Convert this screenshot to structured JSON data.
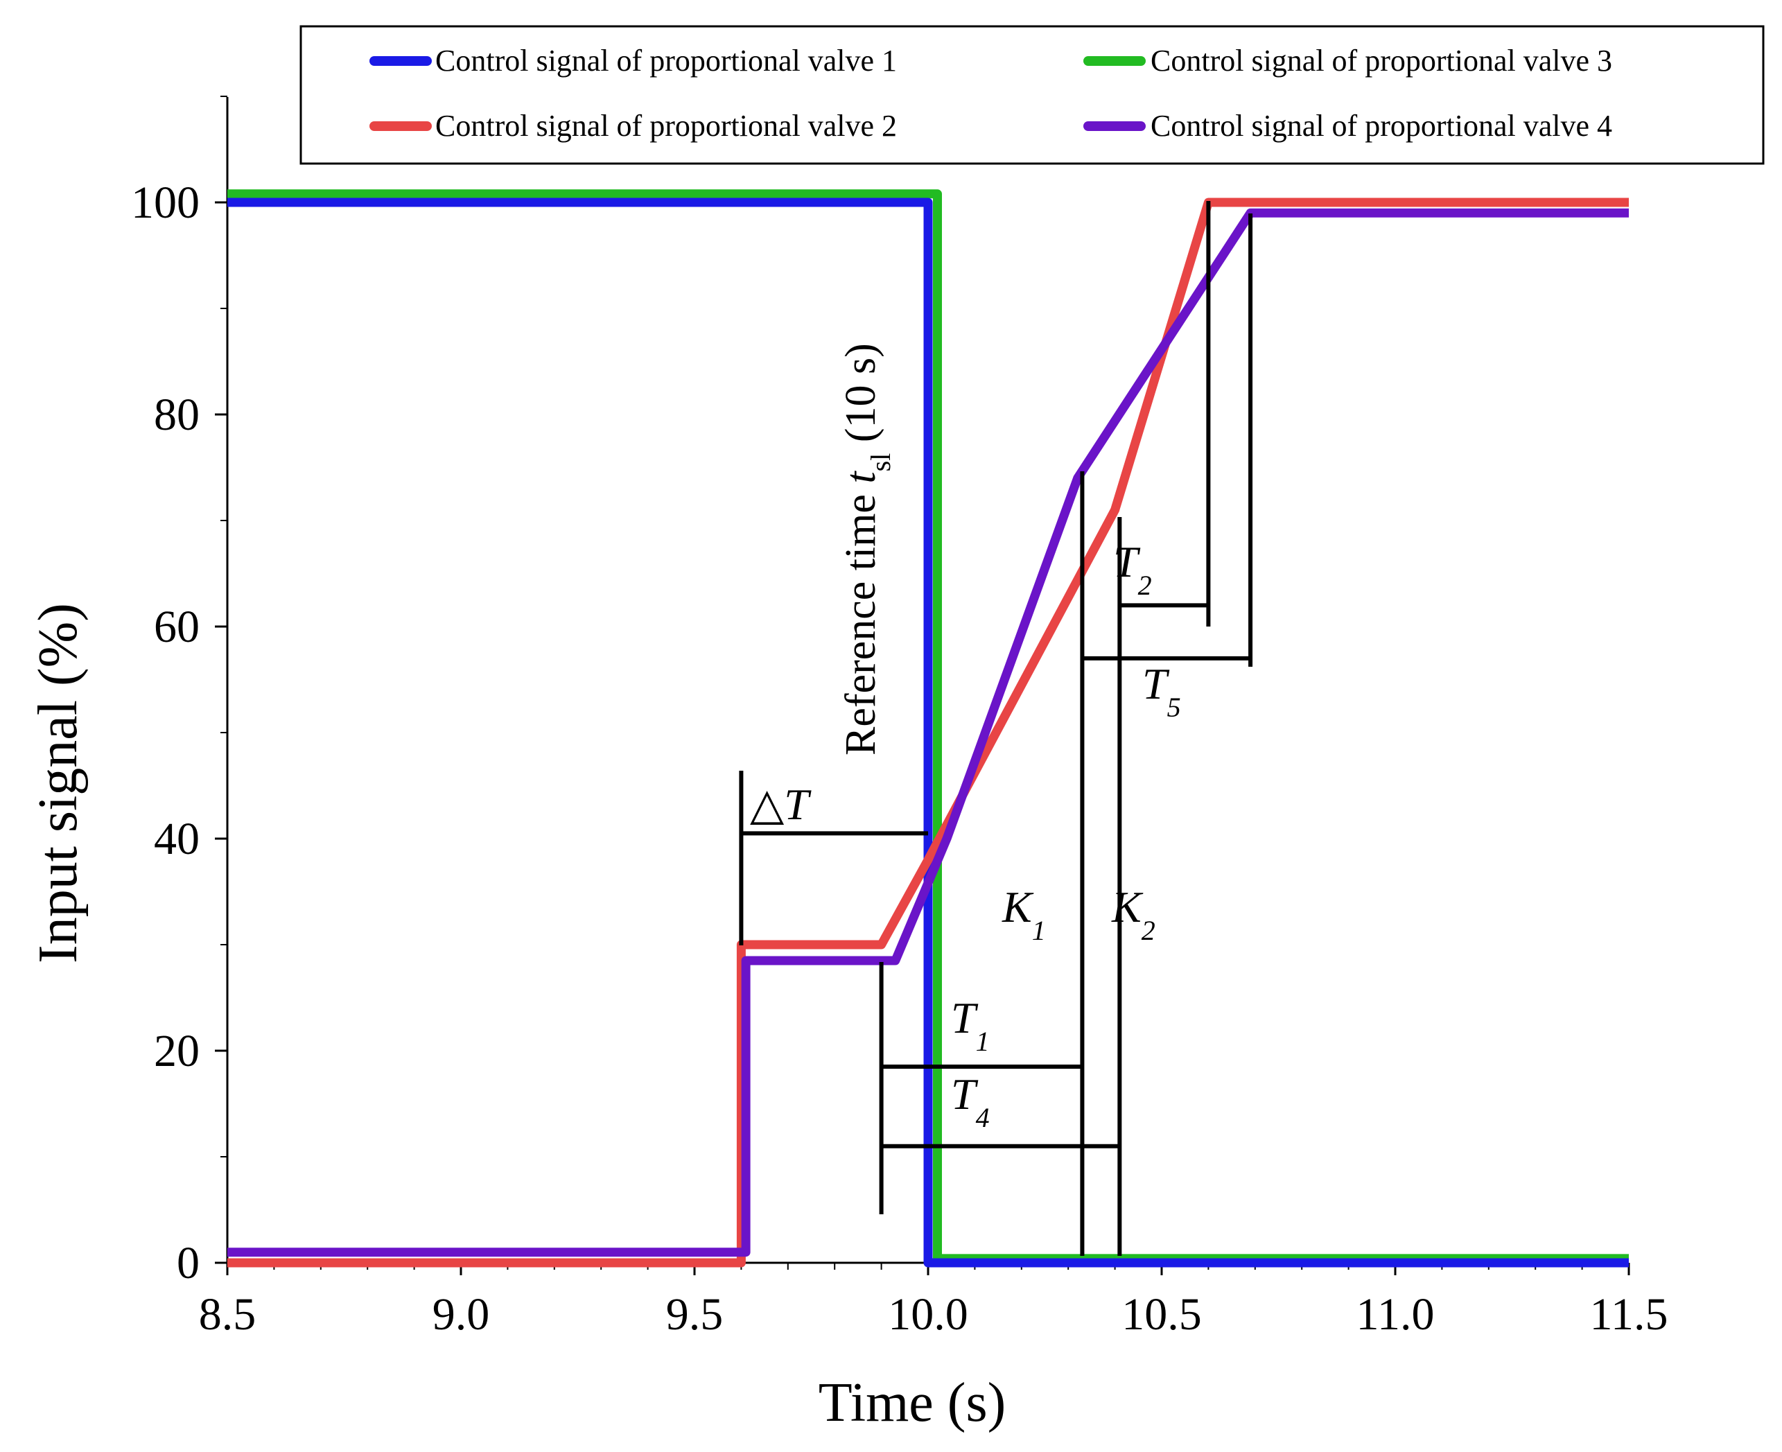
{
  "chart_data": {
    "type": "line",
    "xlabel": "Time (s)",
    "ylabel": "Input signal (%)",
    "xlim": [
      8.5,
      11.5
    ],
    "ylim": [
      0,
      110
    ],
    "xticks": [
      8.5,
      9.0,
      9.5,
      10.0,
      10.5,
      11.0,
      11.5
    ],
    "xtick_labels": [
      "8.5",
      "9.0",
      "9.5",
      "10.0",
      "10.5",
      "11.0",
      "11.5"
    ],
    "yticks": [
      0,
      20,
      40,
      60,
      80,
      100
    ],
    "ytick_labels": [
      "0",
      "20",
      "40",
      "60",
      "80",
      "100"
    ],
    "legend_position": "top",
    "series": [
      {
        "name": "Control signal of proportional valve 1",
        "color": "#1a1ae6",
        "x": [
          8.5,
          10.0,
          10.0,
          11.5
        ],
        "y": [
          100,
          100,
          0,
          0
        ]
      },
      {
        "name": "Control signal of proportional valve 2",
        "color": "#e84545",
        "x": [
          8.5,
          9.6,
          9.6,
          9.9,
          10.0,
          10.4,
          10.6,
          11.5
        ],
        "y": [
          0,
          0,
          30,
          30,
          38,
          71,
          100,
          100
        ]
      },
      {
        "name": "Control signal of proportional valve 3",
        "color": "#22bb22",
        "x": [
          8.5,
          10.02,
          10.02,
          11.5
        ],
        "y": [
          100.8,
          100.8,
          0.4,
          0.4
        ]
      },
      {
        "name": "Control signal of proportional valve 4",
        "color": "#6a14c8",
        "x": [
          8.5,
          9.61,
          9.61,
          9.93,
          10.04,
          10.32,
          10.69,
          11.5
        ],
        "y": [
          1,
          1,
          28.5,
          28.5,
          40,
          74,
          99,
          99
        ]
      }
    ],
    "annotations": {
      "delta_t": {
        "label": "△T",
        "x_start": 9.6,
        "x_end": 10.0,
        "y": 40.5
      },
      "t1": {
        "label": "T",
        "sub": "1",
        "x_start": 9.9,
        "x_end": 10.33,
        "y": 18.5
      },
      "t4": {
        "label": "T",
        "sub": "4",
        "x_start": 9.9,
        "x_end": 10.41,
        "y": 11
      },
      "t2": {
        "label": "T",
        "sub": "2",
        "x_start": 10.41,
        "x_end": 10.6,
        "y": 62
      },
      "t5": {
        "label": "T",
        "sub": "5",
        "x_start": 10.33,
        "x_end": 10.69,
        "y": 57
      },
      "k1": {
        "label": "K",
        "sub": "1"
      },
      "k2": {
        "label": "K",
        "sub": "2"
      },
      "reference": {
        "label": "Reference time ",
        "var": "t",
        "sub": "sl",
        "suffix": " (10 s)"
      }
    }
  }
}
